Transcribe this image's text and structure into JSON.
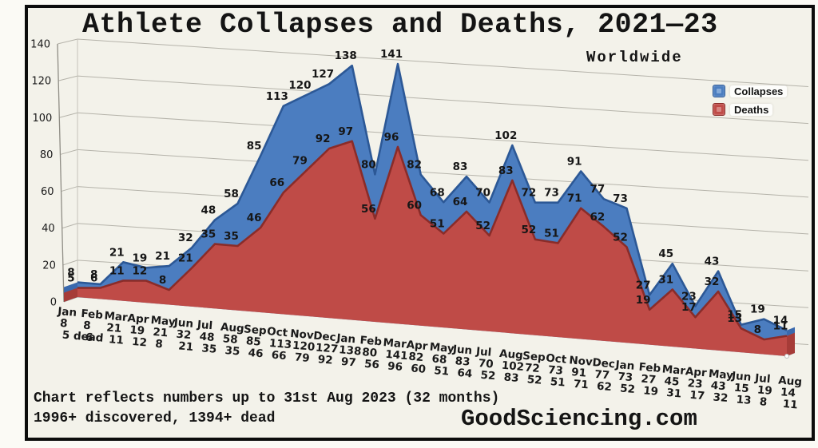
{
  "title": "Athlete Collapses and Deaths, 2021—23",
  "subtitle": "Worldwide",
  "footer": {
    "note_line1": "Chart reflects numbers up to 31st Aug 2023 (32 months)",
    "note_line2": "1996+ discovered, 1394+ dead",
    "brand": "GoodSciencing.com"
  },
  "chart_data": {
    "type": "area",
    "projection": "3d-area",
    "title": "Athlete Collapses and Deaths, 2021—23",
    "subtitle": "Worldwide",
    "grid": true,
    "legend_position": "top-right",
    "ylim": [
      0,
      140
    ],
    "y_ticks": [
      0,
      20,
      40,
      60,
      80,
      100,
      120,
      140
    ],
    "categories": [
      "Jan",
      "Feb",
      "Mar",
      "Apr",
      "May",
      "Jun",
      "Jul",
      "Aug",
      "Sep",
      "Oct",
      "Nov",
      "Dec",
      "Jan",
      "Feb",
      "Mar",
      "Apr",
      "May",
      "Jun",
      "Jul",
      "Aug",
      "Sep",
      "Oct",
      "Nov",
      "Dec",
      "Jan",
      "Feb",
      "Mar",
      "Apr",
      "May",
      "Jun",
      "Jul",
      "Aug"
    ],
    "first_death_label": "5 dead",
    "series": [
      {
        "name": "Collapses",
        "color": "#4b7dc0",
        "edge_color": "#2c5896",
        "side_color": "#3a69ad",
        "inner_color": "#8fb2dd",
        "values": [
          8,
          8,
          21,
          19,
          21,
          32,
          48,
          58,
          85,
          113,
          120,
          127,
          138,
          80,
          141,
          82,
          68,
          83,
          70,
          102,
          72,
          73,
          91,
          77,
          73,
          27,
          45,
          23,
          43,
          15,
          19,
          14
        ]
      },
      {
        "name": "Deaths",
        "color": "#bf4b47",
        "edge_color": "#8a2c29",
        "side_color": "#a63c38",
        "inner_color": "#da8f8c",
        "values": [
          5,
          6,
          11,
          12,
          8,
          21,
          35,
          35,
          46,
          66,
          79,
          92,
          97,
          56,
          96,
          60,
          51,
          64,
          52,
          83,
          52,
          51,
          71,
          62,
          52,
          19,
          31,
          17,
          32,
          13,
          8,
          11
        ]
      }
    ]
  }
}
